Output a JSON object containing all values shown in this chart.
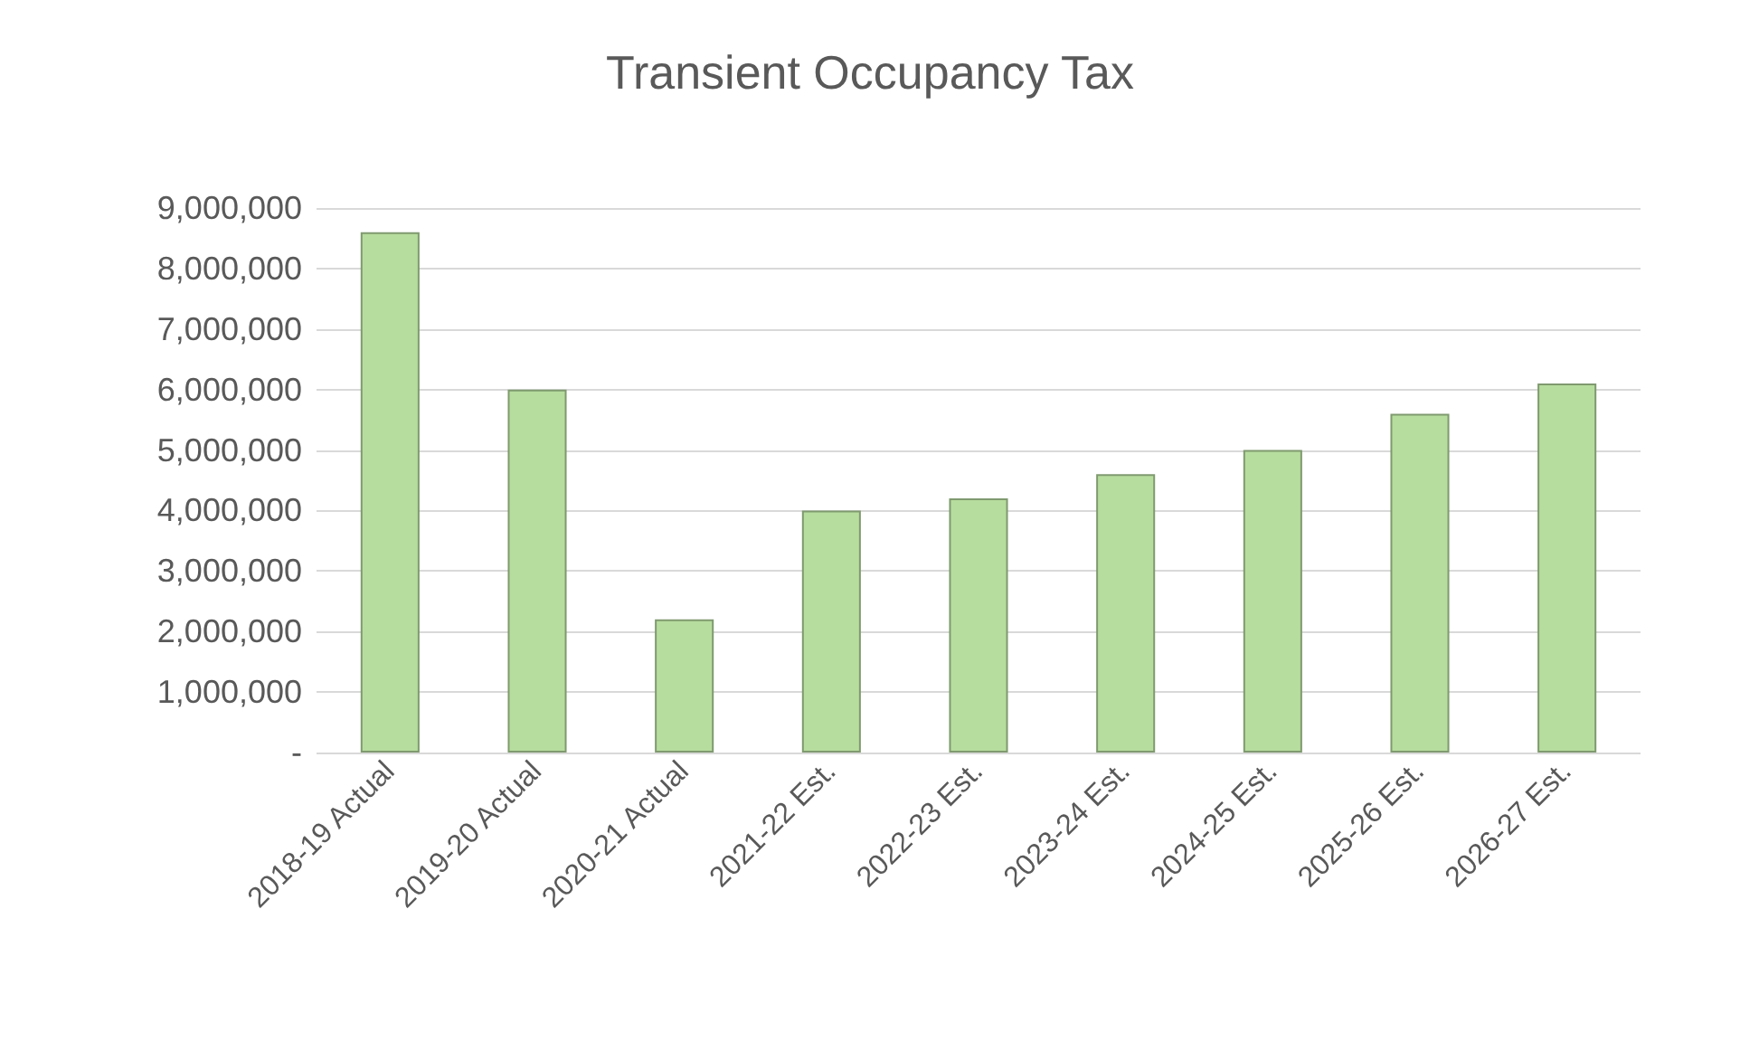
{
  "chart_data": {
    "type": "bar",
    "title": "Transient Occupancy Tax",
    "categories": [
      "2018-19 Actual",
      "2019-20 Actual",
      "2020-21 Actual",
      "2021-22 Est.",
      "2022-23 Est.",
      "2023-24 Est.",
      "2024-25 Est.",
      "2025-26 Est.",
      "2026-27 Est."
    ],
    "values": [
      8600000,
      6000000,
      2200000,
      4000000,
      4200000,
      4600000,
      5000000,
      5600000,
      6100000
    ],
    "color": "#b7dd9e",
    "ylim": [
      0,
      9000000
    ],
    "yticks": [
      {
        "value": 0,
        "label": "-"
      },
      {
        "value": 1000000,
        "label": "1,000,000"
      },
      {
        "value": 2000000,
        "label": "2,000,000"
      },
      {
        "value": 3000000,
        "label": "3,000,000"
      },
      {
        "value": 4000000,
        "label": "4,000,000"
      },
      {
        "value": 5000000,
        "label": "5,000,000"
      },
      {
        "value": 6000000,
        "label": "6,000,000"
      },
      {
        "value": 7000000,
        "label": "7,000,000"
      },
      {
        "value": 8000000,
        "label": "8,000,000"
      },
      {
        "value": 9000000,
        "label": "9,000,000"
      }
    ],
    "grid": "y"
  }
}
